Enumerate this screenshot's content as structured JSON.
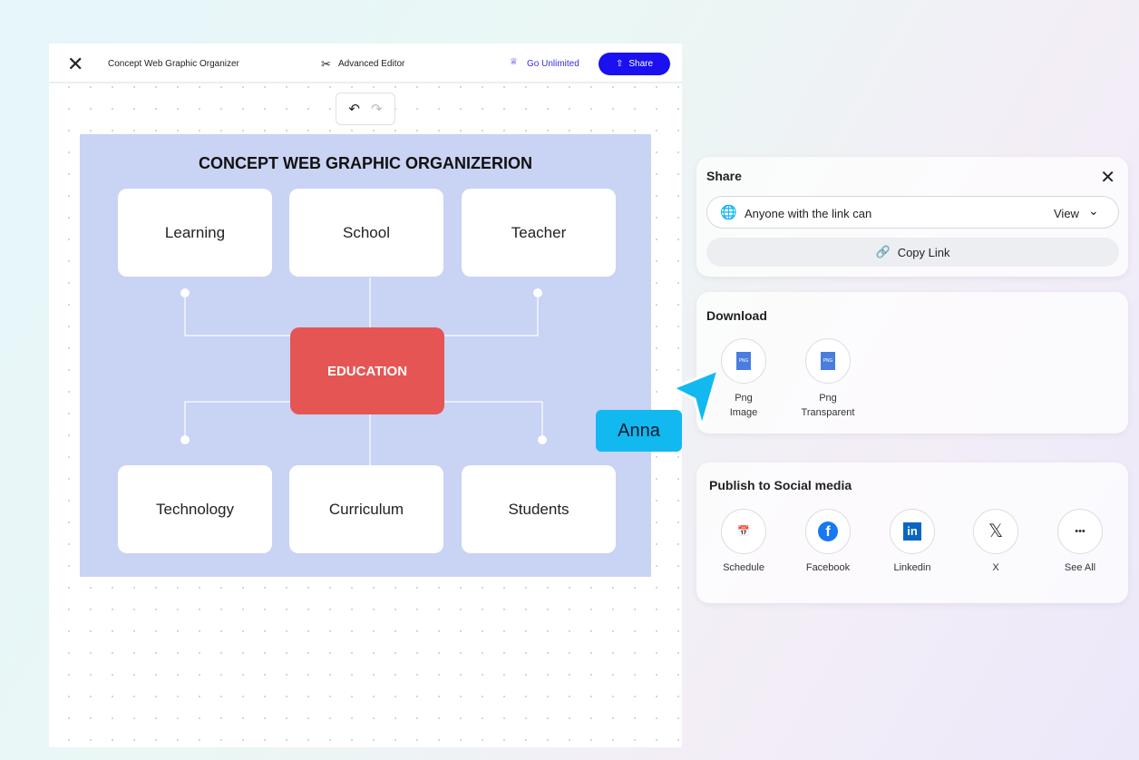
{
  "topbar": {
    "title": "Concept Web Graphic Organizer",
    "advanced": "Advanced Editor",
    "unlimited": "Go Unlimited",
    "share": "Share",
    "accent": "#1a10f0"
  },
  "canvas": {
    "title": "CONCEPT WEB GRAPHIC ORGANIZERION",
    "center": "EDUCATION",
    "top": [
      "Learning",
      "School",
      "Teacher"
    ],
    "bottom": [
      "Technology",
      "Curriculum",
      "Students"
    ]
  },
  "cursor": {
    "name": "Anna",
    "color": "#12b8f0"
  },
  "share": {
    "title": "Share",
    "access": "Anyone with the link can",
    "permission": "View",
    "copy": "Copy Link"
  },
  "download": {
    "title": "Download",
    "items": [
      {
        "l1": "Png",
        "l2": "Image"
      },
      {
        "l1": "Png",
        "l2": "Transparent"
      }
    ]
  },
  "social": {
    "title": "Publish to Social media",
    "items": [
      "Schedule",
      "Facebook",
      "Linkedin",
      "X",
      "See All"
    ]
  }
}
